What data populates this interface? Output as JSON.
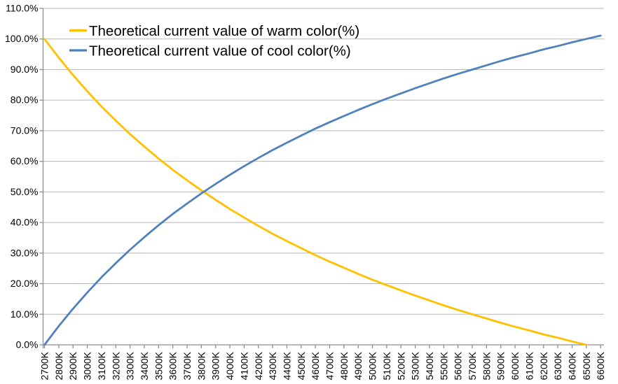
{
  "colors": {
    "warm_series": "#FFC000",
    "cool_series": "#4F81BD",
    "gridline": "#b7b7b7",
    "axis": "#8e8e8e",
    "text": "#000000",
    "background": "#ffffff"
  },
  "chart_data": {
    "type": "line",
    "title": "",
    "xlabel": "",
    "ylabel": "",
    "grid": "horizontal",
    "legend_position": "top-left-inside",
    "categories": [
      "2700K",
      "2800K",
      "2900K",
      "3000K",
      "3100K",
      "3200K",
      "3300K",
      "3400K",
      "3500K",
      "3600K",
      "3700K",
      "3800K",
      "3900K",
      "4000K",
      "4100K",
      "4200K",
      "4300K",
      "4400K",
      "4500K",
      "4600K",
      "4700K",
      "4800K",
      "4900K",
      "5000K",
      "5100K",
      "5200K",
      "5300K",
      "5400K",
      "5500K",
      "5600K",
      "5700K",
      "5800K",
      "5900K",
      "6000K",
      "6100K",
      "6200K",
      "6300K",
      "6400K",
      "6500K",
      "6600K"
    ],
    "x_axis": {
      "label_rotation": -90,
      "first": "2700K",
      "last": "6600K",
      "step": "100K"
    },
    "y_axis": {
      "min": 0,
      "max": 110,
      "step": 10,
      "ticks": [
        "0.0%",
        "10.0%",
        "20.0%",
        "30.0%",
        "40.0%",
        "50.0%",
        "60.0%",
        "70.0%",
        "80.0%",
        "90.0%",
        "100.0%",
        "110.0%"
      ]
    },
    "series": [
      {
        "name": "Theoretical current value of warm color(%)",
        "color": "#FFC000",
        "values": [
          100.0,
          93.9,
          88.2,
          82.9,
          77.9,
          73.3,
          68.9,
          64.8,
          60.9,
          57.2,
          53.8,
          50.5,
          47.4,
          44.4,
          41.6,
          38.9,
          36.3,
          33.9,
          31.6,
          29.3,
          27.2,
          25.2,
          23.2,
          21.3,
          19.5,
          17.8,
          16.1,
          14.5,
          12.9,
          11.4,
          10.0,
          8.6,
          7.2,
          5.9,
          4.7,
          3.4,
          2.3,
          1.1,
          0.0,
          null
        ]
      },
      {
        "name": "Theoretical current value of cool color(%)",
        "color": "#4F81BD",
        "values": [
          0.0,
          6.1,
          11.8,
          17.1,
          22.1,
          26.7,
          31.1,
          35.2,
          39.1,
          42.8,
          46.2,
          49.5,
          52.6,
          55.6,
          58.4,
          61.1,
          63.7,
          66.1,
          68.4,
          70.7,
          72.8,
          74.8,
          76.8,
          78.7,
          80.5,
          82.2,
          83.9,
          85.5,
          87.1,
          88.6,
          90.0,
          91.4,
          92.8,
          94.1,
          95.3,
          96.6,
          97.7,
          98.9,
          100.0,
          101.1
        ]
      }
    ]
  }
}
